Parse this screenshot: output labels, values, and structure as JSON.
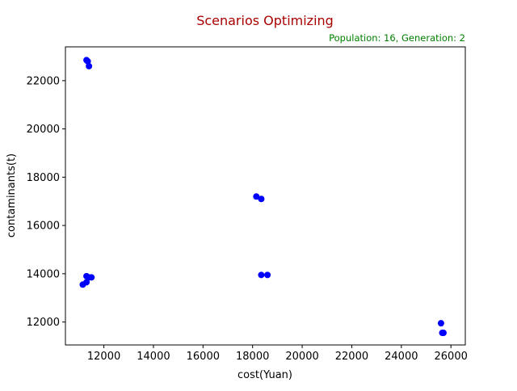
{
  "chart_data": {
    "type": "scatter",
    "title": "Scenarios Optimizing",
    "subtitle": "Population: 16, Generation: 2",
    "xlabel": "cost(Yuan)",
    "ylabel": "contaminants(t)",
    "xlim": [
      10450,
      26580
    ],
    "ylim": [
      11050,
      23400
    ],
    "xticks": [
      12000,
      14000,
      16000,
      18000,
      20000,
      22000,
      24000,
      26000
    ],
    "yticks": [
      12000,
      14000,
      16000,
      18000,
      20000,
      22000
    ],
    "grid": false,
    "colors": {
      "title": "#aa0000",
      "subtitle": "#008000",
      "points": "#0000ff",
      "axes": "#000000"
    },
    "points": [
      {
        "x": 11300,
        "y": 22850
      },
      {
        "x": 11350,
        "y": 22800
      },
      {
        "x": 11400,
        "y": 22600
      },
      {
        "x": 18150,
        "y": 17200
      },
      {
        "x": 18350,
        "y": 17100
      },
      {
        "x": 11150,
        "y": 13550
      },
      {
        "x": 11300,
        "y": 13650
      },
      {
        "x": 11300,
        "y": 13900
      },
      {
        "x": 11400,
        "y": 13850
      },
      {
        "x": 11500,
        "y": 13850
      },
      {
        "x": 18350,
        "y": 13950
      },
      {
        "x": 18600,
        "y": 13950
      },
      {
        "x": 25600,
        "y": 11950
      },
      {
        "x": 25650,
        "y": 11550
      },
      {
        "x": 25700,
        "y": 11550
      }
    ]
  }
}
